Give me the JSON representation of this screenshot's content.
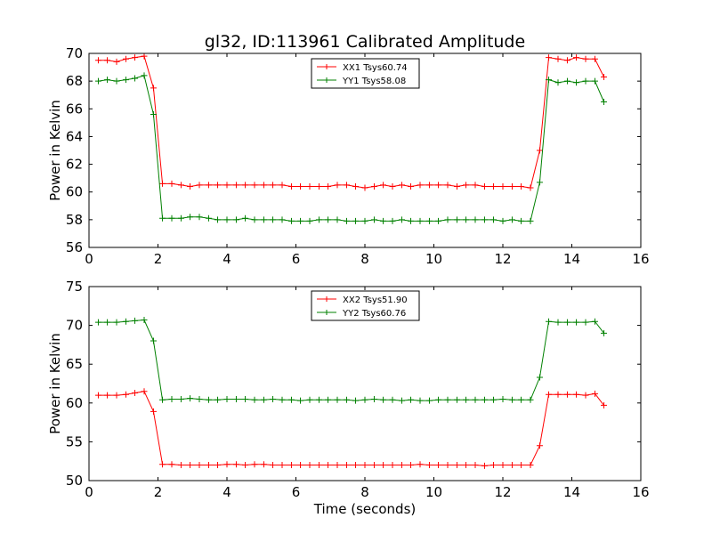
{
  "title": "gl32, ID:113961 Calibrated Amplitude",
  "chart_data": [
    {
      "type": "line",
      "title": "gl32, ID:113961 Calibrated Amplitude",
      "xlabel": "",
      "ylabel": "Power in Kelvin",
      "xlim": [
        0,
        16
      ],
      "ylim": [
        56,
        70
      ],
      "xticks": [
        0,
        2,
        4,
        6,
        8,
        10,
        12,
        14,
        16
      ],
      "yticks": [
        56,
        58,
        60,
        62,
        64,
        66,
        68,
        70
      ],
      "grid": false,
      "legend_position": "top-center",
      "x": [
        0.27,
        0.53,
        0.8,
        1.07,
        1.33,
        1.6,
        1.87,
        2.13,
        2.4,
        2.67,
        2.93,
        3.2,
        3.47,
        3.73,
        4.0,
        4.27,
        4.53,
        4.8,
        5.07,
        5.33,
        5.6,
        5.87,
        6.13,
        6.4,
        6.67,
        6.93,
        7.2,
        7.47,
        7.73,
        8.0,
        8.27,
        8.53,
        8.8,
        9.07,
        9.33,
        9.6,
        9.87,
        10.13,
        10.4,
        10.67,
        10.93,
        11.2,
        11.47,
        11.73,
        12.0,
        12.27,
        12.53,
        12.8,
        13.07,
        13.33,
        13.6,
        13.87,
        14.13,
        14.4,
        14.67,
        14.93
      ],
      "series": [
        {
          "name": "XX1 Tsys60.74",
          "color": "#ff0000",
          "values": [
            69.5,
            69.5,
            69.4,
            69.6,
            69.7,
            69.8,
            67.5,
            60.6,
            60.6,
            60.5,
            60.4,
            60.5,
            60.5,
            60.5,
            60.5,
            60.5,
            60.5,
            60.5,
            60.5,
            60.5,
            60.5,
            60.4,
            60.4,
            60.4,
            60.4,
            60.4,
            60.5,
            60.5,
            60.4,
            60.3,
            60.4,
            60.5,
            60.4,
            60.5,
            60.4,
            60.5,
            60.5,
            60.5,
            60.5,
            60.4,
            60.5,
            60.5,
            60.4,
            60.4,
            60.4,
            60.4,
            60.4,
            60.3,
            63.0,
            69.7,
            69.6,
            69.5,
            69.7,
            69.6,
            69.6,
            68.3
          ]
        },
        {
          "name": "YY1 Tsys58.08",
          "color": "#008000",
          "values": [
            68.0,
            68.1,
            68.0,
            68.1,
            68.2,
            68.4,
            65.6,
            58.1,
            58.1,
            58.1,
            58.2,
            58.2,
            58.1,
            58.0,
            58.0,
            58.0,
            58.1,
            58.0,
            58.0,
            58.0,
            58.0,
            57.9,
            57.9,
            57.9,
            58.0,
            58.0,
            58.0,
            57.9,
            57.9,
            57.9,
            58.0,
            57.9,
            57.9,
            58.0,
            57.9,
            57.9,
            57.9,
            57.9,
            58.0,
            58.0,
            58.0,
            58.0,
            58.0,
            58.0,
            57.9,
            58.0,
            57.9,
            57.9,
            60.7,
            68.1,
            67.9,
            68.0,
            67.9,
            68.0,
            68.0,
            66.5
          ]
        }
      ]
    },
    {
      "type": "line",
      "title": "",
      "xlabel": "Time (seconds)",
      "ylabel": "Power in Kelvin",
      "xlim": [
        0,
        16
      ],
      "ylim": [
        50,
        75
      ],
      "xticks": [
        0,
        2,
        4,
        6,
        8,
        10,
        12,
        14,
        16
      ],
      "yticks": [
        50,
        55,
        60,
        65,
        70,
        75
      ],
      "grid": false,
      "legend_position": "top-center",
      "x": [
        0.27,
        0.53,
        0.8,
        1.07,
        1.33,
        1.6,
        1.87,
        2.13,
        2.4,
        2.67,
        2.93,
        3.2,
        3.47,
        3.73,
        4.0,
        4.27,
        4.53,
        4.8,
        5.07,
        5.33,
        5.6,
        5.87,
        6.13,
        6.4,
        6.67,
        6.93,
        7.2,
        7.47,
        7.73,
        8.0,
        8.27,
        8.53,
        8.8,
        9.07,
        9.33,
        9.6,
        9.87,
        10.13,
        10.4,
        10.67,
        10.93,
        11.2,
        11.47,
        11.73,
        12.0,
        12.27,
        12.53,
        12.8,
        13.07,
        13.33,
        13.6,
        13.87,
        14.13,
        14.4,
        14.67,
        14.93
      ],
      "series": [
        {
          "name": "XX2 Tsys51.90",
          "color": "#ff0000",
          "values": [
            61.0,
            61.0,
            61.0,
            61.1,
            61.3,
            61.5,
            58.9,
            52.1,
            52.1,
            52.0,
            52.0,
            52.0,
            52.0,
            52.0,
            52.1,
            52.1,
            52.0,
            52.1,
            52.1,
            52.0,
            52.0,
            52.0,
            52.0,
            52.0,
            52.0,
            52.0,
            52.0,
            52.0,
            52.0,
            52.0,
            52.0,
            52.0,
            52.0,
            52.0,
            52.0,
            52.1,
            52.0,
            52.0,
            52.0,
            52.0,
            52.0,
            52.0,
            51.9,
            52.0,
            52.0,
            52.0,
            52.0,
            52.0,
            54.5,
            61.1,
            61.1,
            61.1,
            61.1,
            61.0,
            61.2,
            59.7
          ]
        },
        {
          "name": "YY2 Tsys60.76",
          "color": "#008000",
          "values": [
            70.4,
            70.4,
            70.4,
            70.5,
            70.6,
            70.7,
            68.0,
            60.4,
            60.5,
            60.5,
            60.6,
            60.5,
            60.4,
            60.4,
            60.5,
            60.5,
            60.5,
            60.4,
            60.4,
            60.5,
            60.4,
            60.4,
            60.3,
            60.4,
            60.4,
            60.4,
            60.4,
            60.4,
            60.3,
            60.4,
            60.5,
            60.4,
            60.4,
            60.3,
            60.4,
            60.3,
            60.3,
            60.4,
            60.4,
            60.4,
            60.4,
            60.4,
            60.4,
            60.4,
            60.5,
            60.4,
            60.4,
            60.4,
            63.3,
            70.5,
            70.4,
            70.4,
            70.4,
            70.4,
            70.5,
            69.0
          ]
        }
      ]
    }
  ]
}
